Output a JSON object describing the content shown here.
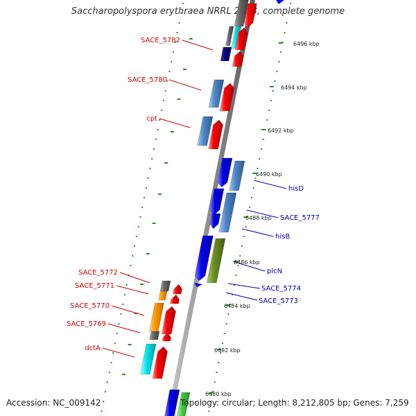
{
  "title": "Saccharopolyspora erythraea NRRL 2338, complete genome",
  "footer": {
    "accession": "Accession: NC_009142",
    "summary": "Topology: circular; Length: 8,212,805 bp; Genes: 7,259"
  },
  "colors": {
    "backbone": "#8a8a8a",
    "tick": "#2e8b2e",
    "label_left": "#cc0000",
    "label_right": "#0000bb",
    "gene_red": "#ff0000",
    "gene_blue": "#0000ee",
    "gene_steelblue": "#4f86c6",
    "gene_navy": "#000080",
    "gene_olive": "#6b8e23",
    "gene_orange": "#ff9900",
    "gene_cyan": "#00e5ee",
    "gene_gray": "#666666",
    "gene_green": "#44cc44"
  },
  "kbp_labels": [
    {
      "id": "6496",
      "text": "6496 kbp"
    },
    {
      "id": "6494",
      "text": "6494 kbp"
    },
    {
      "id": "6492",
      "text": "6492 kbp"
    },
    {
      "id": "6490",
      "text": "6490 kbp"
    },
    {
      "id": "6488",
      "text": "6488 kbp"
    },
    {
      "id": "6486",
      "text": "6486 kbp"
    },
    {
      "id": "6484",
      "text": "6484 kbp"
    },
    {
      "id": "6482",
      "text": "6482 kbp"
    },
    {
      "id": "6480",
      "text": "6480 kbp"
    }
  ],
  "gene_labels_left": [
    {
      "id": "sace5782",
      "text": "SACE_5782"
    },
    {
      "id": "sace5780",
      "text": "SACE_5780"
    },
    {
      "id": "cpt",
      "text": "cpt"
    },
    {
      "id": "sace5772",
      "text": "SACE_5772"
    },
    {
      "id": "sace5771",
      "text": "SACE_5771"
    },
    {
      "id": "sace5770",
      "text": "SACE_5770"
    },
    {
      "id": "sace5769",
      "text": "SACE_5769"
    },
    {
      "id": "dcta",
      "text": "dctA"
    }
  ],
  "gene_labels_right": [
    {
      "id": "hisd",
      "text": "hisD"
    },
    {
      "id": "sace5777",
      "text": "SACE_5777"
    },
    {
      "id": "hisb",
      "text": "hisB"
    },
    {
      "id": "plcn",
      "text": "plcN"
    },
    {
      "id": "sace5774",
      "text": "SACE_5774"
    },
    {
      "id": "sace5773",
      "text": "SACE_5773"
    }
  ]
}
